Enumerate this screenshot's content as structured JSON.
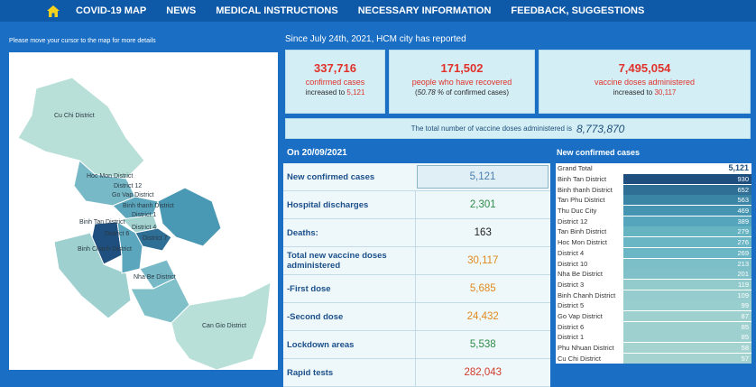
{
  "nav": {
    "home_icon": "home-icon",
    "items": [
      "COVID-19 MAP",
      "NEWS",
      "MEDICAL INSTRUCTIONS",
      "NECESSARY INFORMATION",
      "FEEDBACK, SUGGESTIONS"
    ]
  },
  "map": {
    "hint": "Please move your cursor to the map for more details",
    "labels": [
      "Cu Chi District",
      "Hoc Mon District",
      "District 12",
      "Go Vap District",
      "Binh thanh District",
      "District 1",
      "Binh Tan District",
      "District 4",
      "District 6",
      "District 7",
      "Binh Chanh District",
      "Nha Be District",
      "Can Gio District"
    ]
  },
  "reported": "Since July 24th, 2021, HCM city has reported",
  "cards": {
    "confirmed": {
      "num": "337,716",
      "label": "confirmed cases",
      "sub": "increased to",
      "inc": "5,121"
    },
    "recovered": {
      "num": "171,502",
      "label": "people who have recovered",
      "sub_pct": "50.78 %",
      "sub_rest": "of confirmed cases"
    },
    "vaccine": {
      "num": "7,495,054",
      "label": "vaccine doses administered",
      "sub": "increased to",
      "inc": "30,117"
    }
  },
  "total_doses": {
    "label": "The total number of vaccine doses administered is",
    "value": "8,773,870"
  },
  "on_label": "On  20/09/2021",
  "stats": [
    {
      "label": "New confirmed cases",
      "value": "5,121",
      "color": "#4a7eb0"
    },
    {
      "label": "Hospital discharges",
      "value": "2,301",
      "color": "#2e8b46"
    },
    {
      "label": "Deaths:",
      "value": "163",
      "color": "#222222"
    },
    {
      "label": "Total new vaccine doses administered",
      "value": "30,117",
      "color": "#e08a1e"
    },
    {
      "label": "-First dose",
      "value": "5,685",
      "color": "#e08a1e"
    },
    {
      "label": "-Second dose",
      "value": "24,432",
      "color": "#e08a1e"
    },
    {
      "label": "Lockdown areas",
      "value": "5,538",
      "color": "#2e8b46"
    },
    {
      "label": "Rapid tests",
      "value": "282,043",
      "color": "#d23a2b"
    }
  ],
  "new_cases_title": "New confirmed cases",
  "new_cases": {
    "grand_total_label": "Grand Total",
    "grand_total_value": "5,121",
    "rows": [
      {
        "name": "Binh Tan District",
        "value": "930",
        "color": "#1f4f7f"
      },
      {
        "name": "Binh thanh District",
        "value": "652",
        "color": "#2f6f96"
      },
      {
        "name": "Tan Phu District",
        "value": "563",
        "color": "#3a84a6"
      },
      {
        "name": "Thu Duc City",
        "value": "469",
        "color": "#4595b2"
      },
      {
        "name": "District 12",
        "value": "389",
        "color": "#55a5bc"
      },
      {
        "name": "Tan Binh District",
        "value": "279",
        "color": "#66b3c2"
      },
      {
        "name": "Hoc Mon District",
        "value": "276",
        "color": "#6bb6c4"
      },
      {
        "name": "District 4",
        "value": "269",
        "color": "#6bb6c4"
      },
      {
        "name": "District 10",
        "value": "213",
        "color": "#7cbfc8"
      },
      {
        "name": "Nha Be District",
        "value": "201",
        "color": "#80c1c9"
      },
      {
        "name": "District 3",
        "value": "119",
        "color": "#93cbcd"
      },
      {
        "name": "Binh Chanh District",
        "value": "109",
        "color": "#96cccd"
      },
      {
        "name": "District 5",
        "value": "99",
        "color": "#99cecf"
      },
      {
        "name": "Go Vap District",
        "value": "87",
        "color": "#9dd0cf"
      },
      {
        "name": "District 6",
        "value": "85",
        "color": "#9dd0cf"
      },
      {
        "name": "District 1",
        "value": "85",
        "color": "#9dd0cf"
      },
      {
        "name": "Phu Nhuan District",
        "value": "58",
        "color": "#a4d3d0"
      },
      {
        "name": "Cu Chi District",
        "value": "57",
        "color": "#a4d3d0"
      }
    ]
  },
  "colors": {
    "topbar": "#0f5aa8",
    "background": "#1a6fc4",
    "card": "#d4eef5",
    "red": "#e0322b"
  }
}
